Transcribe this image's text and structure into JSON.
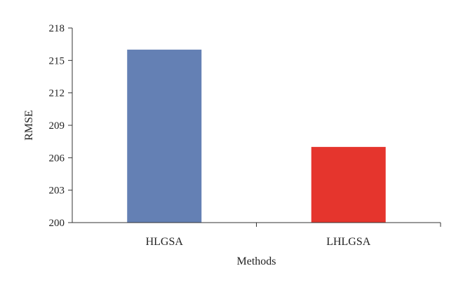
{
  "chart_data": {
    "type": "bar",
    "categories": [
      "HLGSA",
      "LHLGSA"
    ],
    "values": [
      216,
      207
    ],
    "colors": [
      "#6480b4",
      "#e5352d"
    ],
    "xlabel": "Methods",
    "ylabel": "RMSE",
    "ylim": [
      200,
      218
    ],
    "yticks": [
      200,
      203,
      206,
      209,
      212,
      215,
      218
    ],
    "grid": false,
    "legend": "none"
  }
}
